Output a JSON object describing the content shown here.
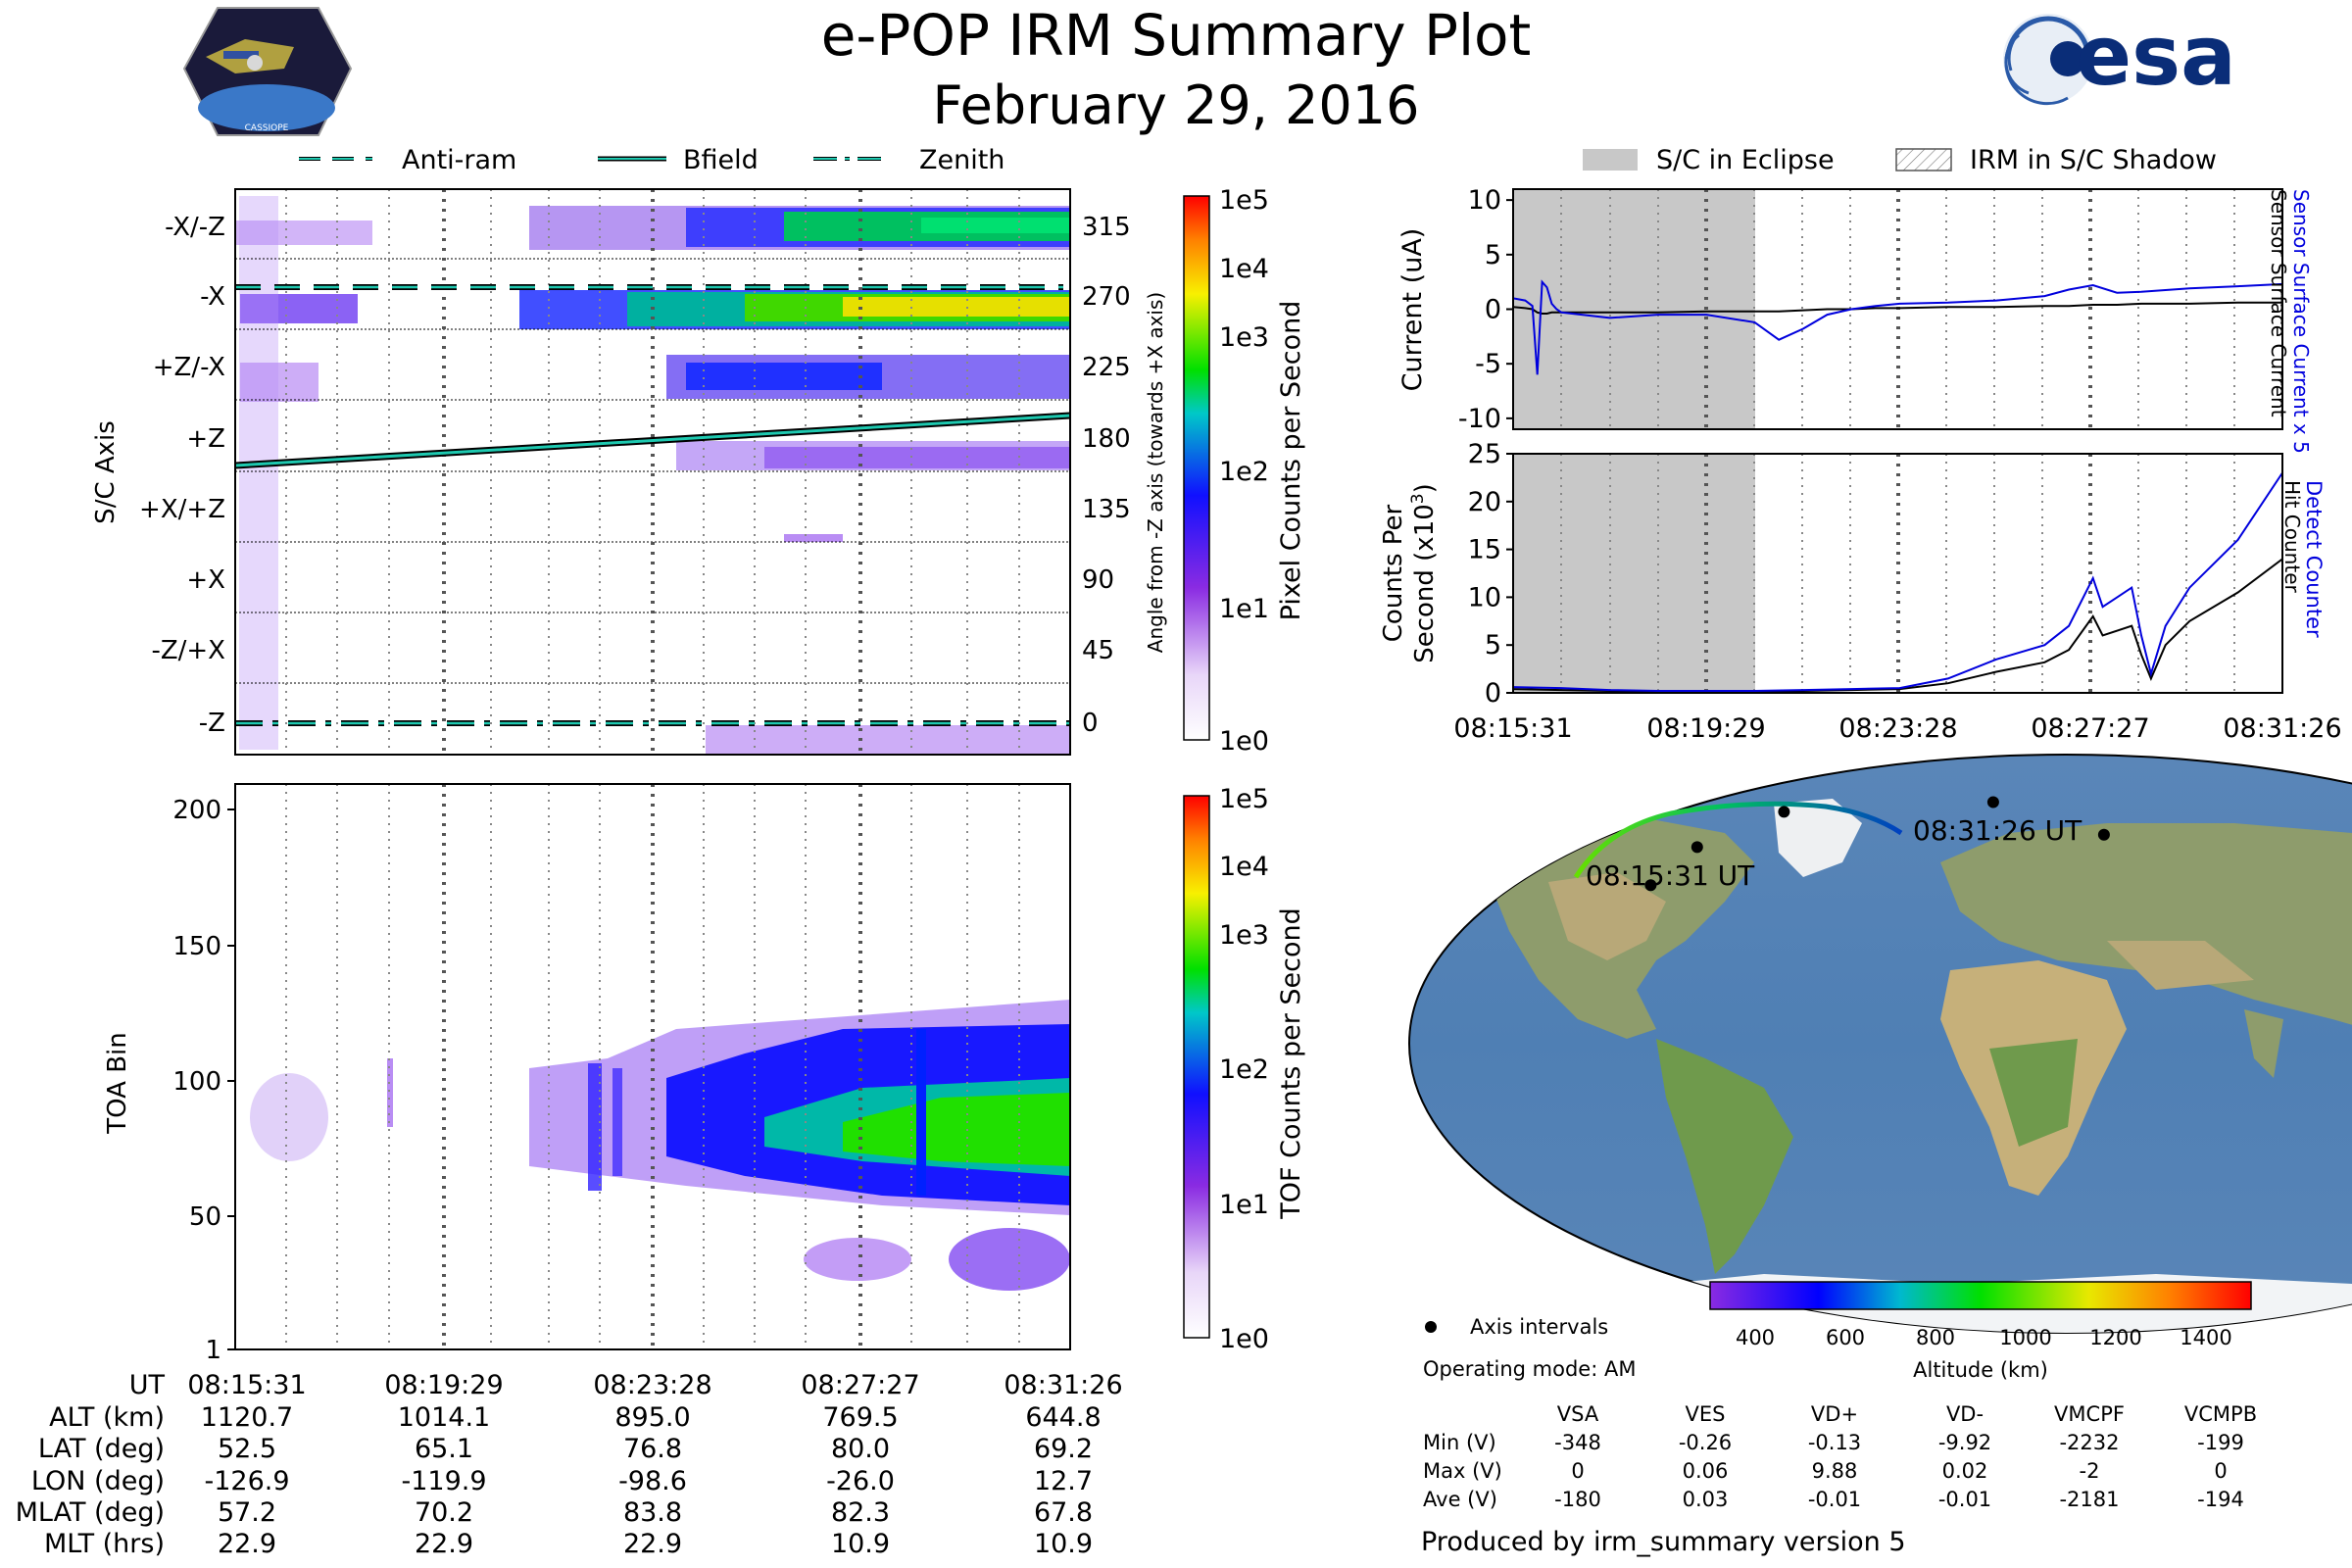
{
  "header": {
    "title": "e-POP IRM Summary Plot",
    "date": "February 29, 2016",
    "mission_logo_text": "CASSIOPE",
    "agency_logo_text": "esa"
  },
  "colors": {
    "bfield_line": "#1ec9b0",
    "eclipse_fill": "#c8c8c8",
    "sensor_surface_current_x5": "#0000dd",
    "sensor_surface_current": "#000000",
    "detect_counter": "#0000dd",
    "hit_counter": "#000000",
    "altitude_colormap": [
      "#8a2be2",
      "#0000ff",
      "#00c0c0",
      "#00e000",
      "#e0e000",
      "#ff8000",
      "#ff0000"
    ],
    "counts_colormap": [
      "#ffffff",
      "#8a2be2",
      "#0000ff",
      "#00c000",
      "#ffff00",
      "#ff0000"
    ]
  },
  "time_ticks": [
    "08:15:31",
    "08:19:29",
    "08:23:28",
    "08:27:27",
    "08:31:26"
  ],
  "pixel_panel": {
    "legend": [
      {
        "label": "Anti-ram",
        "style": "dashed"
      },
      {
        "label": "Bfield",
        "style": "solid"
      },
      {
        "label": "Zenith",
        "style": "dashdot"
      }
    ],
    "ylabel": "S/C Axis",
    "axis_labels": [
      "-X/-Z",
      "-X",
      "+Z/-X",
      "+Z",
      "+X/+Z",
      "+X",
      "-Z/+X",
      "-Z"
    ],
    "right_ticks": [
      "315",
      "270",
      "225",
      "180",
      "135",
      "90",
      "45",
      "0"
    ],
    "right_label": "Angle from -Z axis (towards +X axis)",
    "colorbar_label": "Pixel Counts per Second",
    "colorbar_ticks": [
      "1e5",
      "1e4",
      "1e3",
      "1e2",
      "1e1",
      "1e0"
    ]
  },
  "tof_panel": {
    "ylabel": "TOA Bin",
    "yticks": [
      "200",
      "150",
      "100",
      "50",
      "1"
    ],
    "colorbar_label": "TOF Counts per Second",
    "colorbar_ticks": [
      "1e5",
      "1e4",
      "1e3",
      "1e2",
      "1e1",
      "1e0"
    ]
  },
  "eclipse_legend": [
    {
      "label": "S/C in Eclipse"
    },
    {
      "label": "IRM in S/C Shadow"
    }
  ],
  "ephemeris": {
    "row_labels": [
      "UT",
      "ALT (km)",
      "LAT (deg)",
      "LON (deg)",
      "MLAT (deg)",
      "MLT (hrs)"
    ],
    "columns": [
      [
        "08:15:31",
        "1120.7",
        "52.5",
        "-126.9",
        "57.2",
        "22.9"
      ],
      [
        "08:19:29",
        "1014.1",
        "65.1",
        "-119.9",
        "70.2",
        "22.9"
      ],
      [
        "08:23:28",
        "895.0",
        "76.8",
        "-98.6",
        "83.8",
        "22.9"
      ],
      [
        "08:27:27",
        "769.5",
        "80.0",
        "-26.0",
        "82.3",
        "10.9"
      ],
      [
        "08:31:26",
        "644.8",
        "69.2",
        "12.7",
        "67.8",
        "10.9"
      ]
    ]
  },
  "map": {
    "start_label": "08:15:31 UT",
    "end_label": "08:31:26 UT"
  },
  "altitude_bar": {
    "label": "Altitude (km)",
    "ticks": [
      "400",
      "600",
      "800",
      "1000",
      "1200",
      "1400"
    ]
  },
  "footer": {
    "axis_intervals_label": "Axis intervals",
    "operating_mode": "Operating mode: AM",
    "voltage_headers": [
      "VSA",
      "VES",
      "VD+",
      "VD-",
      "VMCPF",
      "VCMPB"
    ],
    "voltage_rows": [
      {
        "label": "Min (V)",
        "values": [
          "-348",
          "-0.26",
          "-0.13",
          "-9.92",
          "-2232",
          "-199"
        ]
      },
      {
        "label": "Max (V)",
        "values": [
          "0",
          "0.06",
          "9.88",
          "0.02",
          "-2",
          "0"
        ]
      },
      {
        "label": "Ave (V)",
        "values": [
          "-180",
          "0.03",
          "-0.01",
          "-0.01",
          "-2181",
          "-194"
        ]
      }
    ],
    "produced_by": "Produced by irm_summary version 5"
  },
  "chart_data": [
    {
      "type": "heatmap",
      "name": "pixel_counts",
      "ylabel": "S/C Axis",
      "right_ylabel": "Angle from -Z axis (towards +X axis)",
      "x_ticks": [
        "08:15:31",
        "08:19:29",
        "08:23:28",
        "08:27:27",
        "08:31:26"
      ],
      "rows": [
        "-X/-Z",
        "-X",
        "+Z/-X",
        "+Z",
        "+X/+Z",
        "+X",
        "-Z/+X",
        "-Z"
      ],
      "angle_ticks": [
        315,
        270,
        225,
        180,
        135,
        90,
        45,
        0
      ],
      "colorbar_label": "Pixel Counts per Second",
      "color_scale": "log",
      "color_range": [
        1,
        100000
      ],
      "lines": [
        {
          "name": "Anti-ram",
          "angle": [
            277,
            277
          ]
        },
        {
          "name": "Bfield",
          "angle": [
            165,
            197
          ]
        },
        {
          "name": "Zenith",
          "angle": [
            0,
            0
          ]
        }
      ]
    },
    {
      "type": "heatmap",
      "name": "tof_counts",
      "ylabel": "TOA Bin",
      "ylim": [
        1,
        210
      ],
      "x_ticks": [
        "08:15:31",
        "08:19:29",
        "08:23:28",
        "08:27:27",
        "08:31:26"
      ],
      "y_ticks": [
        1,
        50,
        100,
        150,
        200
      ],
      "colorbar_label": "TOF Counts per Second",
      "color_scale": "log",
      "color_range": [
        1,
        100000
      ]
    },
    {
      "type": "line",
      "name": "current",
      "ylabel": "Current (uA)",
      "ylim": [
        -11,
        11
      ],
      "yticks": [
        10,
        5,
        0,
        -5,
        -10
      ],
      "x_minutes": [
        0,
        0.25,
        0.4,
        0.5,
        0.6,
        0.7,
        0.8,
        0.9,
        1.0,
        2,
        3,
        4,
        5,
        5.5,
        6,
        6.5,
        7,
        7.5,
        8,
        9,
        10,
        11,
        11.5,
        12,
        12.5,
        13,
        14,
        15,
        15.92
      ],
      "series": [
        {
          "name": "Sensor Surface Current x 5",
          "values": [
            1,
            0.8,
            0.3,
            -6,
            2.5,
            2,
            0.5,
            0,
            -0.3,
            -0.8,
            -0.5,
            -0.5,
            -1.2,
            -2.8,
            -1.8,
            -0.5,
            0,
            0.3,
            0.5,
            0.6,
            0.8,
            1.2,
            1.8,
            2.2,
            1.5,
            1.6,
            1.9,
            2.1,
            2.3
          ]
        },
        {
          "name": "Sensor Surface Current",
          "values": [
            0.2,
            0.1,
            0,
            -0.3,
            -0.4,
            -0.4,
            -0.3,
            -0.3,
            -0.3,
            -0.3,
            -0.3,
            -0.2,
            -0.2,
            -0.2,
            -0.1,
            0,
            0,
            0.1,
            0.1,
            0.2,
            0.2,
            0.3,
            0.3,
            0.4,
            0.4,
            0.5,
            0.5,
            0.6,
            0.6
          ]
        }
      ]
    },
    {
      "type": "line",
      "name": "counts",
      "ylabel": "Counts Per Second (x10^3)",
      "ylim": [
        0,
        25
      ],
      "yticks": [
        25,
        20,
        15,
        10,
        5,
        0
      ],
      "x_minutes": [
        0,
        1,
        2,
        3,
        4,
        5,
        6,
        7,
        8,
        9,
        10,
        11,
        11.5,
        12,
        12.2,
        12.5,
        12.8,
        13,
        13.2,
        13.5,
        14,
        15,
        15.92
      ],
      "series": [
        {
          "name": "Detect Counter",
          "values": [
            0.6,
            0.5,
            0.3,
            0.2,
            0.2,
            0.2,
            0.3,
            0.4,
            0.5,
            1.5,
            3.5,
            5,
            7,
            12,
            9,
            10,
            11,
            6,
            2,
            7,
            11,
            16,
            23
          ]
        },
        {
          "name": "Hit Counter",
          "values": [
            0.4,
            0.3,
            0.2,
            0.1,
            0.1,
            0.1,
            0.2,
            0.3,
            0.4,
            1.0,
            2.2,
            3.2,
            4.5,
            8,
            6,
            6.5,
            7,
            4,
            1.5,
            5,
            7.5,
            10.5,
            14
          ]
        }
      ]
    },
    {
      "type": "scatter",
      "name": "ground_track",
      "lon": [
        -126.9,
        -119.9,
        -98.6,
        -26.0,
        12.7
      ],
      "lat": [
        52.5,
        65.1,
        76.8,
        80.0,
        69.2
      ],
      "altitude_km": [
        1120.7,
        1014.1,
        895.0,
        769.5,
        644.8
      ],
      "colorbar_label": "Altitude (km)",
      "colorbar_range": [
        300,
        1500
      ]
    }
  ]
}
